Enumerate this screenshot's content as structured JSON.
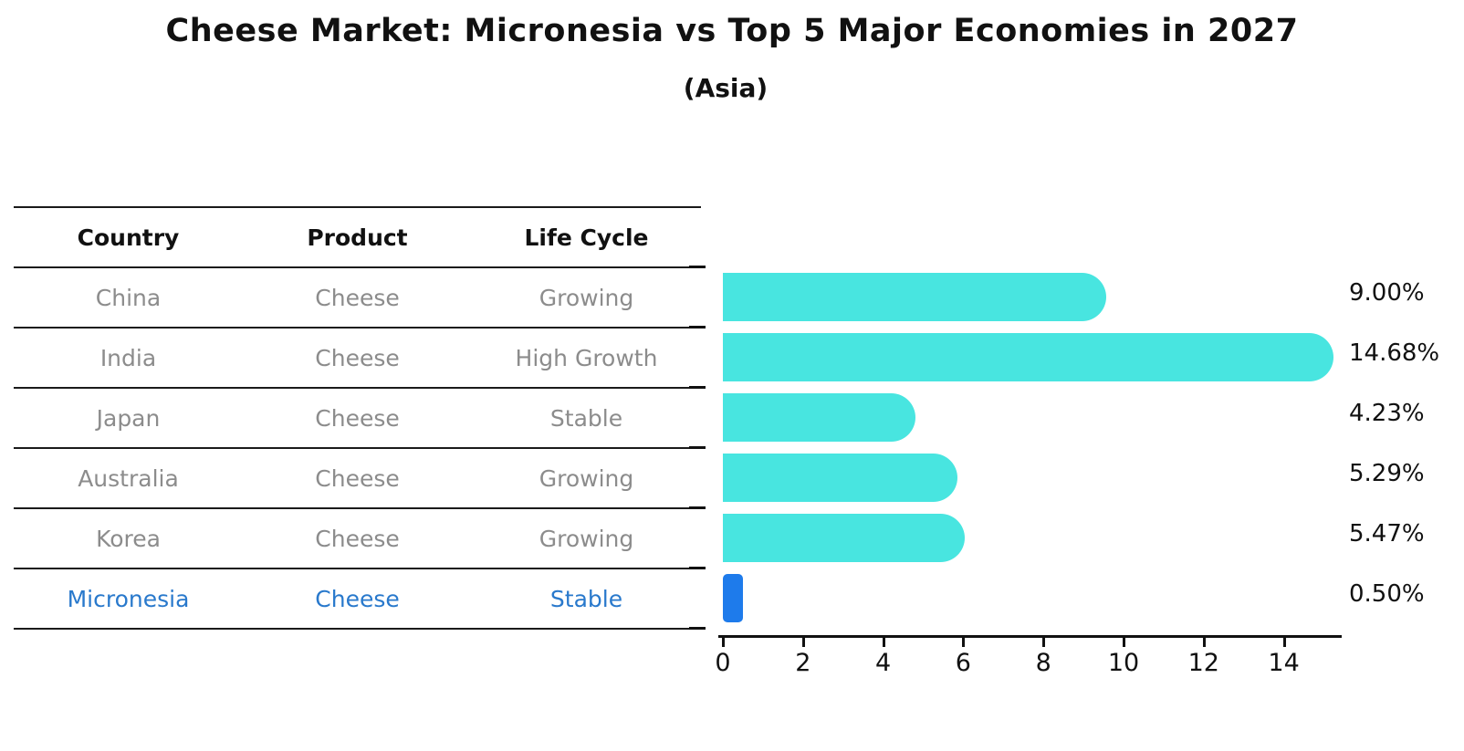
{
  "header": {
    "title": "Cheese Market: Micronesia vs Top 5 Major Economies in 2027",
    "subtitle": "(Asia)"
  },
  "table": {
    "headers": [
      "Country",
      "Product",
      "Life Cycle"
    ],
    "rows": [
      {
        "country": "China",
        "product": "Cheese",
        "life_cycle": "Growing",
        "highlight": false
      },
      {
        "country": "India",
        "product": "Cheese",
        "life_cycle": "High Growth",
        "highlight": false
      },
      {
        "country": "Japan",
        "product": "Cheese",
        "life_cycle": "Stable",
        "highlight": false
      },
      {
        "country": "Australia",
        "product": "Cheese",
        "life_cycle": "Growing",
        "highlight": false
      },
      {
        "country": "Korea",
        "product": "Cheese",
        "life_cycle": "Growing",
        "highlight": false
      },
      {
        "country": "Micronesia",
        "product": "Cheese",
        "life_cycle": "Stable",
        "highlight": true
      }
    ]
  },
  "chart_data": {
    "type": "bar",
    "orientation": "horizontal",
    "categories": [
      "China",
      "India",
      "Japan",
      "Australia",
      "Korea",
      "Micronesia"
    ],
    "values": [
      9.0,
      14.68,
      4.23,
      5.29,
      5.47,
      0.5
    ],
    "value_labels": [
      "9.00%",
      "14.68%",
      "4.23%",
      "5.29%",
      "5.47%",
      "0.50%"
    ],
    "xticks": [
      0,
      2,
      4,
      6,
      8,
      10,
      12,
      14
    ],
    "xtick_labels": [
      "0",
      "2",
      "4",
      "6",
      "8",
      "10",
      "12",
      "14"
    ],
    "xlim": [
      0,
      15.5
    ],
    "grid": false,
    "legend": false,
    "bar_color": "#48E5E0",
    "highlight_color": "#1E7BEB",
    "highlight_index": 5,
    "units": "percent"
  },
  "colors": {
    "text_primary": "#111111",
    "text_muted": "#8c8c8c",
    "text_highlight": "#2979cc",
    "rule": "#1a1a1a"
  }
}
